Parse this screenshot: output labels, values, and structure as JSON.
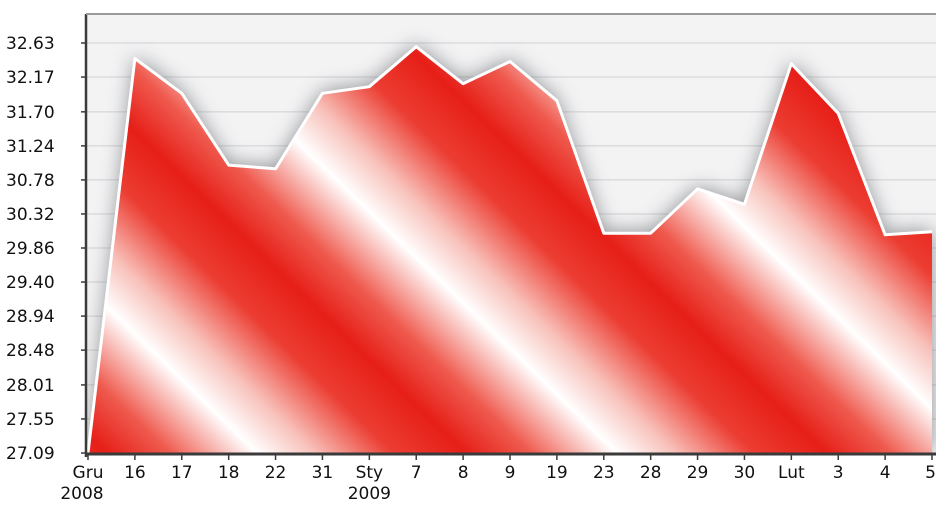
{
  "chart_data": {
    "type": "area",
    "title": "",
    "xlabel": "",
    "ylabel": "",
    "ylim": [
      27.09,
      32.63
    ],
    "yticks": [
      "32.63",
      "32.17",
      "31.70",
      "31.24",
      "30.78",
      "30.32",
      "29.86",
      "29.40",
      "28.94",
      "28.48",
      "28.01",
      "27.55",
      "27.09"
    ],
    "categories": [
      "Gru",
      "16",
      "17",
      "18",
      "22",
      "31",
      "Sty",
      "7",
      "8",
      "9",
      "19",
      "23",
      "28",
      "29",
      "30",
      "Lut",
      "3",
      "4",
      "5"
    ],
    "sublabels": [
      {
        "index": 0,
        "text": "2008"
      },
      {
        "index": 6,
        "text": "2009"
      }
    ],
    "values": [
      27.09,
      32.42,
      31.95,
      30.98,
      30.93,
      31.95,
      32.04,
      32.58,
      32.08,
      32.38,
      31.85,
      30.06,
      30.06,
      30.66,
      30.45,
      32.35,
      31.68,
      30.04,
      30.08
    ],
    "grid": true,
    "legend": "none",
    "colors": {
      "fill_red": "#e8271e",
      "fill_light": "#ffffff",
      "line": "#ffffff",
      "shadow": "#6e7176",
      "grid": "#cfd0d2",
      "axis": "#3a3a3a"
    }
  }
}
